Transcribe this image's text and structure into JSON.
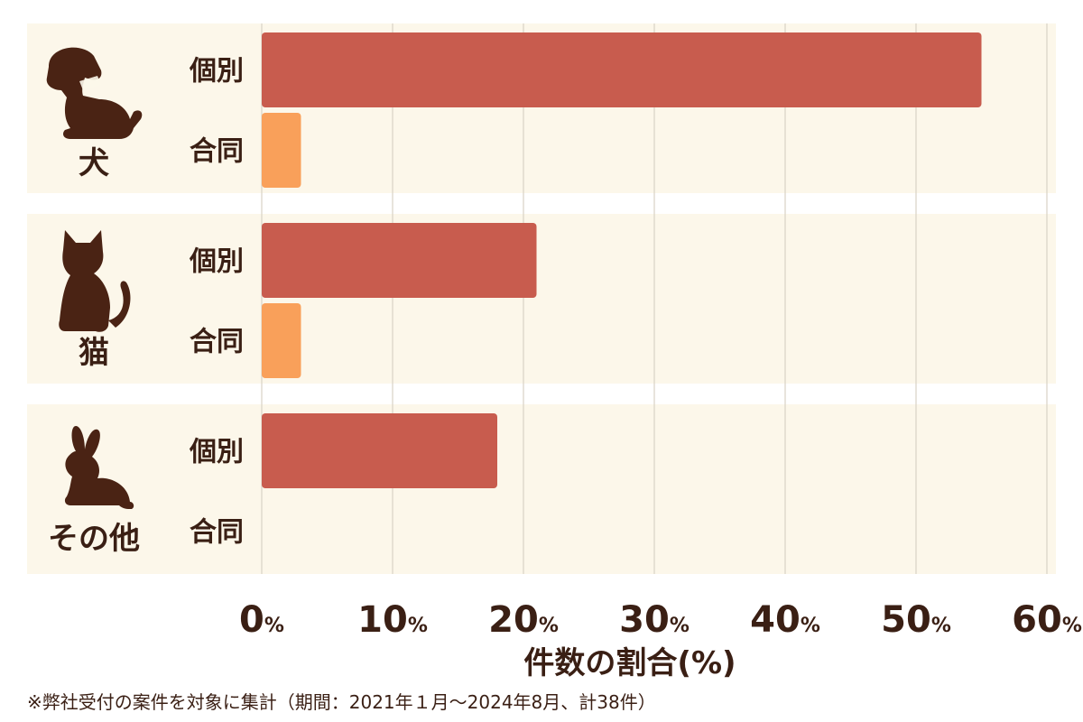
{
  "chart_data": {
    "type": "bar",
    "orientation": "horizontal",
    "categories": [
      "犬",
      "猫",
      "その他"
    ],
    "series": [
      {
        "name": "個別",
        "values": [
          55,
          21,
          18
        ],
        "color": "#c85c4e"
      },
      {
        "name": "合同",
        "values": [
          3,
          3,
          0
        ],
        "color": "#f9a05a"
      }
    ],
    "xlim": [
      0,
      60
    ],
    "xticks": [
      0,
      10,
      20,
      30,
      40,
      50,
      60
    ],
    "tick_unit": "%",
    "xlabel": "件数の割合(%)",
    "grid": true,
    "icons": [
      "dog-icon",
      "cat-icon",
      "rabbit-icon"
    ]
  },
  "footnote": "※弊社受付の案件を対象に集計（期間：2021年１月〜2024年8月、計38件）"
}
